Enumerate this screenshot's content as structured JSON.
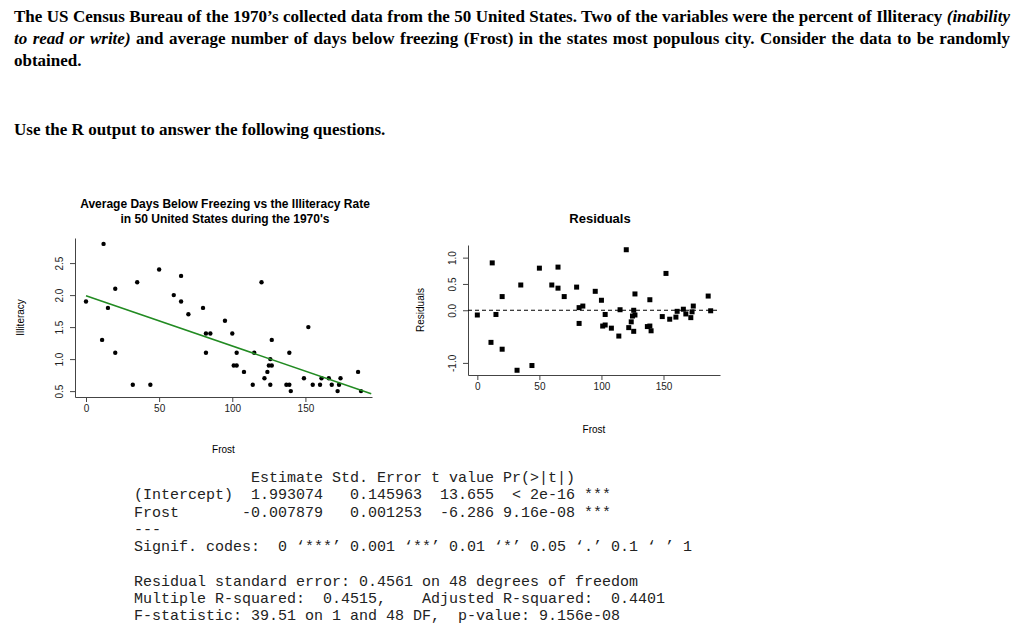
{
  "question": {
    "intro": [
      "The US Census Bureau of the 1970’s collected data from the 50 United States. Two of the variables were the percent of Illiteracy ",
      "(inability to read or write)",
      " and average number of days below freezing (Frost) in the states most populous city. Consider the data to be randomly obtained."
    ],
    "instruction": "Use the R output to answer the following questions."
  },
  "chart_data": [
    {
      "type": "scatter",
      "title": "Average Days Below Freezing vs the Illiteracy Rate\nin 50 United States during the 1970's",
      "x_label": "Frost",
      "y_label": "Illiteracy",
      "xlim": [
        -7.52,
        195.52
      ],
      "ylim": [
        0.408,
        2.892
      ],
      "xticks": [
        0,
        50,
        100,
        150
      ],
      "yticks": [
        0.5,
        {
          "value": 1,
          "label": "1.0"
        },
        1.5,
        {
          "value": 2,
          "label": "2.0"
        },
        2.5
      ],
      "series": [
        {
          "type": "scatter",
          "marker": "circle",
          "color": "#000000",
          "x": [
            20,
            152,
            15,
            65,
            20,
            166,
            139,
            103,
            11,
            60,
            0,
            126,
            127,
            122,
            140,
            114,
            95,
            12,
            161,
            101,
            103,
            125,
            160,
            50,
            108,
            155,
            139,
            188,
            174,
            115,
            120,
            82,
            80,
            186,
            124,
            82,
            44,
            126,
            127,
            65,
            172,
            70,
            35,
            137,
            168,
            85,
            32,
            100,
            149,
            173
          ],
          "values": [
            2.1,
            1.5,
            1.8,
            1.9,
            1.1,
            0.7,
            1.1,
            0.9,
            1.3,
            2.0,
            1.9,
            0.6,
            0.9,
            0.7,
            0.5,
            0.6,
            1.6,
            2.8,
            0.7,
            0.9,
            1.1,
            0.9,
            0.6,
            2.4,
            0.8,
            0.6,
            0.6,
            0.5,
            0.7,
            1.1,
            2.2,
            1.4,
            1.8,
            0.8,
            0.8,
            1.1,
            0.6,
            1.0,
            1.3,
            2.3,
            0.5,
            1.7,
            2.2,
            0.6,
            0.6,
            1.4,
            0.6,
            1.4,
            0.7,
            0.6
          ]
        },
        {
          "type": "line",
          "line_style": "solid",
          "color": "#228b22",
          "x": [
            0,
            195
          ],
          "values": [
            1.99,
            0.46
          ]
        }
      ]
    },
    {
      "type": "scatter",
      "title": "Residuals",
      "x_label": "Frost",
      "y_label": "Residuals",
      "xlim": [
        -7.52,
        195.52
      ],
      "ylim": [
        -1.23,
        1.24
      ],
      "xticks": [
        0,
        50,
        100,
        150
      ],
      "yticks": [
        {
          "value": -1,
          "label": "-1.0"
        },
        {
          "value": 0,
          "label": "0.0"
        },
        0.5,
        {
          "value": 1,
          "label": "1.0"
        }
      ],
      "series": [
        {
          "type": "scatter",
          "marker": "square",
          "color": "#000000",
          "x": [
            20,
            152,
            15,
            65,
            20,
            166,
            139,
            103,
            11,
            60,
            0,
            126,
            127,
            122,
            140,
            114,
            95,
            12,
            161,
            101,
            103,
            125,
            160,
            50,
            108,
            155,
            139,
            188,
            174,
            115,
            120,
            82,
            80,
            186,
            124,
            82,
            44,
            126,
            127,
            65,
            172,
            70,
            35,
            137,
            168,
            85,
            32,
            100,
            149,
            173
          ],
          "values": [
            0.26,
            0.7,
            -0.08,
            0.42,
            -0.74,
            0.02,
            0.2,
            -0.28,
            -0.61,
            0.48,
            -0.09,
            -0.4,
            -0.09,
            -0.33,
            -0.39,
            -0.49,
            0.36,
            0.9,
            -0.02,
            -0.3,
            -0.08,
            -0.11,
            -0.13,
            0.8,
            -0.34,
            -0.17,
            -0.3,
            -0.01,
            0.08,
            0.01,
            1.15,
            0.05,
            0.44,
            0.27,
            -0.22,
            -0.25,
            -1.05,
            0.0,
            0.31,
            0.82,
            -0.14,
            0.26,
            0.48,
            -0.31,
            -0.07,
            0.08,
            -1.14,
            0.19,
            -0.12,
            -0.03
          ]
        },
        {
          "type": "line",
          "line_style": "dashed",
          "color": "#000000",
          "x": [
            -7.52,
            195.52
          ],
          "values": [
            0,
            0
          ]
        }
      ]
    }
  ],
  "r_output": {
    "coefficients": [
      "             Estimate Std. Error t value Pr(>|t|)    ",
      "(Intercept)  1.993074   0.145963  13.655  < 2e-16 ***",
      "Frost       -0.007879   0.001253  -6.286 9.16e-08 ***",
      "---"
    ],
    "signif": "Signif. codes:  0 ‘***’ 0.001 ‘**’ 0.01 ‘*’ 0.05 ‘.’ 0.1 ‘ ’ 1",
    "summary": [
      "Residual standard error: 0.4561 on 48 degrees of freedom",
      "Multiple R-squared:  0.4515,\tAdjusted R-squared:  0.4401 ",
      "F-statistic: 39.51 on 1 and 48 DF,  p-value: 9.156e-08"
    ]
  }
}
